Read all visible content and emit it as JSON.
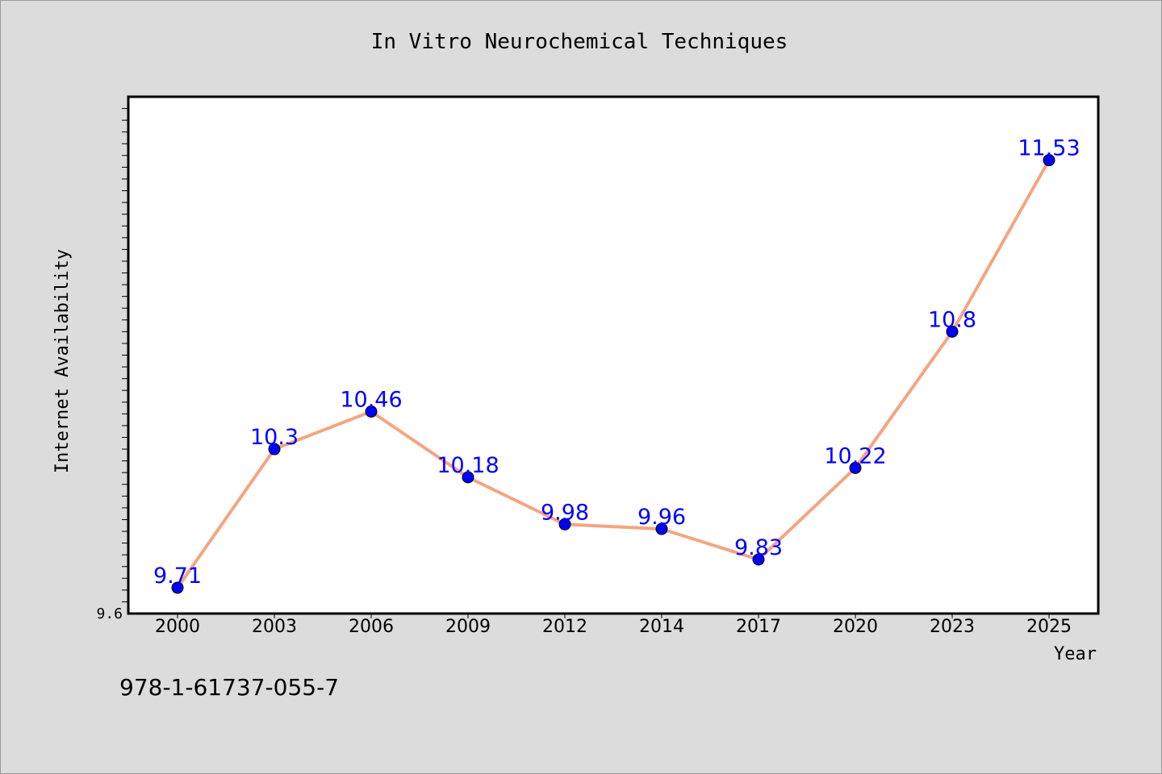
{
  "chart_data": {
    "type": "line",
    "title": "In Vitro Neurochemical Techniques",
    "xlabel": "Year",
    "ylabel": "Internet Availability",
    "categories": [
      "2000",
      "2003",
      "2006",
      "2009",
      "2012",
      "2014",
      "2017",
      "2020",
      "2023",
      "2025"
    ],
    "series": [
      {
        "values": [
          9.71,
          10.3,
          10.46,
          10.18,
          9.98,
          9.96,
          9.83,
          10.22,
          10.8,
          11.53
        ],
        "line_color": "#f4a582",
        "marker_color": "#0000ff"
      }
    ],
    "data_labels": [
      "9.71",
      "10.3",
      "10.46",
      "10.18",
      "9.98",
      "9.96",
      "9.83",
      "10.22",
      "10.8",
      "11.53"
    ],
    "y_tick_labels": [
      "9.6"
    ],
    "ylim": [
      9.6,
      11.8
    ],
    "grid": false,
    "label_color": "#0000ff"
  },
  "footer": {
    "isbn": "978-1-61737-055-7"
  }
}
